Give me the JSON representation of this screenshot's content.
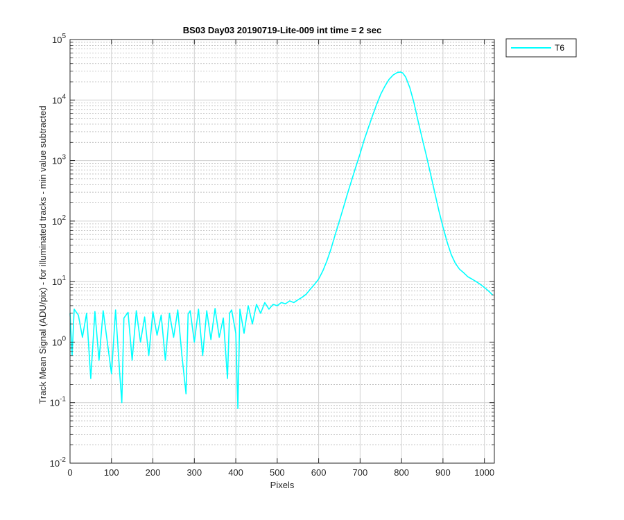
{
  "chart_data": {
    "type": "line",
    "title": "BS03 Day03 20190719-Lite-009 int time = 2 sec",
    "xlabel": "Pixels",
    "ylabel": "Track Mean Signal (ADU/pix) - for illuminated tracks - min value subtracted",
    "xlim": [
      0,
      1024
    ],
    "ylim": [
      0.01,
      100000
    ],
    "yscale": "log",
    "grid": true,
    "minor_grid": true,
    "legend_position": "outside-top-right",
    "x_ticks": [
      "0",
      "100",
      "200",
      "300",
      "400",
      "500",
      "600",
      "700",
      "800",
      "900",
      "1000"
    ],
    "y_ticks": [
      {
        "base": "10",
        "exp": "-2"
      },
      {
        "base": "10",
        "exp": "-1"
      },
      {
        "base": "10",
        "exp": "0"
      },
      {
        "base": "10",
        "exp": "1"
      },
      {
        "base": "10",
        "exp": "2"
      },
      {
        "base": "10",
        "exp": "3"
      },
      {
        "base": "10",
        "exp": "4"
      },
      {
        "base": "10",
        "exp": "5"
      }
    ],
    "series": [
      {
        "name": "T6",
        "color": "#00FFFF",
        "points": [
          [
            0,
            3.0
          ],
          [
            5,
            0.6
          ],
          [
            10,
            3.5
          ],
          [
            20,
            2.8
          ],
          [
            30,
            1.2
          ],
          [
            40,
            3.0
          ],
          [
            50,
            0.25
          ],
          [
            60,
            3.2
          ],
          [
            70,
            0.5
          ],
          [
            80,
            3.3
          ],
          [
            90,
            1.0
          ],
          [
            100,
            0.3
          ],
          [
            110,
            3.4
          ],
          [
            120,
            0.3
          ],
          [
            125,
            0.1
          ],
          [
            130,
            2.5
          ],
          [
            140,
            3.1
          ],
          [
            150,
            0.5
          ],
          [
            160,
            3.3
          ],
          [
            170,
            1.0
          ],
          [
            180,
            2.6
          ],
          [
            190,
            0.6
          ],
          [
            200,
            3.2
          ],
          [
            210,
            1.3
          ],
          [
            220,
            2.8
          ],
          [
            230,
            0.5
          ],
          [
            240,
            3.0
          ],
          [
            250,
            1.2
          ],
          [
            260,
            3.4
          ],
          [
            270,
            0.6
          ],
          [
            280,
            0.14
          ],
          [
            285,
            2.9
          ],
          [
            290,
            3.3
          ],
          [
            300,
            1.0
          ],
          [
            310,
            3.5
          ],
          [
            320,
            0.6
          ],
          [
            330,
            3.3
          ],
          [
            340,
            1.1
          ],
          [
            350,
            3.6
          ],
          [
            360,
            1.2
          ],
          [
            370,
            2.5
          ],
          [
            380,
            0.25
          ],
          [
            385,
            3.0
          ],
          [
            390,
            3.4
          ],
          [
            400,
            1.4
          ],
          [
            405,
            0.08
          ],
          [
            410,
            3.5
          ],
          [
            420,
            1.4
          ],
          [
            430,
            4.0
          ],
          [
            440,
            2.0
          ],
          [
            450,
            4.2
          ],
          [
            460,
            3.0
          ],
          [
            470,
            4.5
          ],
          [
            480,
            3.5
          ],
          [
            490,
            4.2
          ],
          [
            500,
            4.0
          ],
          [
            510,
            4.5
          ],
          [
            520,
            4.3
          ],
          [
            530,
            4.8
          ],
          [
            540,
            4.5
          ],
          [
            550,
            5.0
          ],
          [
            560,
            5.5
          ],
          [
            570,
            6.2
          ],
          [
            580,
            7.5
          ],
          [
            590,
            9.0
          ],
          [
            600,
            11
          ],
          [
            610,
            15
          ],
          [
            620,
            22
          ],
          [
            630,
            35
          ],
          [
            640,
            60
          ],
          [
            650,
            100
          ],
          [
            660,
            170
          ],
          [
            670,
            290
          ],
          [
            680,
            480
          ],
          [
            690,
            800
          ],
          [
            700,
            1300
          ],
          [
            710,
            2200
          ],
          [
            720,
            3500
          ],
          [
            730,
            5500
          ],
          [
            740,
            8500
          ],
          [
            750,
            12500
          ],
          [
            760,
            17000
          ],
          [
            770,
            22000
          ],
          [
            780,
            26000
          ],
          [
            790,
            28500
          ],
          [
            797,
            29000
          ],
          [
            803,
            28000
          ],
          [
            810,
            24000
          ],
          [
            820,
            16000
          ],
          [
            830,
            9000
          ],
          [
            840,
            4500
          ],
          [
            850,
            2300
          ],
          [
            860,
            1200
          ],
          [
            870,
            600
          ],
          [
            880,
            300
          ],
          [
            890,
            150
          ],
          [
            900,
            80
          ],
          [
            910,
            45
          ],
          [
            920,
            28
          ],
          [
            930,
            20
          ],
          [
            940,
            16
          ],
          [
            950,
            14
          ],
          [
            960,
            12
          ],
          [
            970,
            11
          ],
          [
            980,
            10
          ],
          [
            990,
            9
          ],
          [
            1000,
            8
          ],
          [
            1010,
            7
          ],
          [
            1020,
            6
          ]
        ]
      }
    ]
  }
}
